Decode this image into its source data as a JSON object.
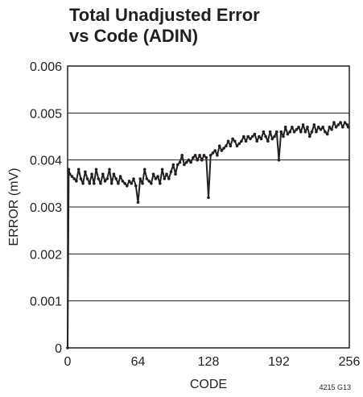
{
  "chart_data": {
    "type": "line",
    "title_lines": [
      "Total Unadjusted Error",
      "vs Code (ADIN)"
    ],
    "xlabel": "CODE",
    "ylabel": "ERROR (mV)",
    "xlim": [
      0,
      256
    ],
    "ylim": [
      0,
      0.006
    ],
    "x_ticks": [
      0,
      64,
      128,
      192,
      256
    ],
    "x_tick_labels": [
      "0",
      "64",
      "128",
      "192",
      "256"
    ],
    "y_ticks": [
      0,
      0.001,
      0.002,
      0.003,
      0.004,
      0.005,
      0.006
    ],
    "y_tick_labels": [
      "0",
      "0.001",
      "0.002",
      "0.003",
      "0.004",
      "0.005",
      "0.006"
    ],
    "grid": "horizontal",
    "figure_number": "4215 G13",
    "series": [
      {
        "color": "#231f20",
        "marker": "dot",
        "x": [
          0,
          1,
          2,
          4,
          6,
          8,
          10,
          12,
          14,
          16,
          18,
          20,
          22,
          24,
          26,
          28,
          30,
          32,
          34,
          36,
          38,
          40,
          42,
          44,
          46,
          48,
          50,
          52,
          54,
          56,
          58,
          60,
          62,
          64,
          66,
          68,
          70,
          72,
          74,
          76,
          78,
          80,
          82,
          84,
          86,
          88,
          90,
          92,
          94,
          96,
          98,
          100,
          102,
          104,
          106,
          108,
          110,
          112,
          114,
          116,
          118,
          120,
          122,
          124,
          126,
          128,
          130,
          132,
          134,
          136,
          138,
          140,
          142,
          144,
          146,
          148,
          150,
          152,
          154,
          156,
          158,
          160,
          162,
          164,
          166,
          168,
          170,
          172,
          174,
          176,
          178,
          180,
          182,
          184,
          186,
          188,
          190,
          192,
          194,
          196,
          198,
          200,
          202,
          204,
          206,
          208,
          210,
          212,
          214,
          216,
          218,
          220,
          222,
          224,
          226,
          228,
          230,
          232,
          234,
          236,
          238,
          240,
          242,
          244,
          246,
          248,
          250,
          252,
          254,
          255
        ],
        "y": [
          0.0,
          0.0038,
          0.0037,
          0.00365,
          0.0036,
          0.00355,
          0.0038,
          0.0036,
          0.0035,
          0.00375,
          0.0036,
          0.0035,
          0.0037,
          0.0035,
          0.0038,
          0.0036,
          0.0035,
          0.0037,
          0.00355,
          0.0036,
          0.0038,
          0.0035,
          0.0037,
          0.0036,
          0.0035,
          0.00365,
          0.00355,
          0.0035,
          0.00345,
          0.00355,
          0.0035,
          0.0036,
          0.00345,
          0.0031,
          0.0036,
          0.0035,
          0.0038,
          0.0036,
          0.00355,
          0.0035,
          0.0037,
          0.0036,
          0.00365,
          0.0035,
          0.0038,
          0.0036,
          0.0037,
          0.0036,
          0.00375,
          0.0039,
          0.0037,
          0.0039,
          0.00395,
          0.0041,
          0.0039,
          0.00395,
          0.004,
          0.00395,
          0.00405,
          0.0041,
          0.004,
          0.0041,
          0.004,
          0.0041,
          0.00405,
          0.0032,
          0.0041,
          0.00415,
          0.0042,
          0.0041,
          0.0043,
          0.0042,
          0.00425,
          0.0043,
          0.0044,
          0.0043,
          0.00445,
          0.0044,
          0.0043,
          0.00435,
          0.0044,
          0.0045,
          0.0044,
          0.0045,
          0.00445,
          0.0045,
          0.00455,
          0.0044,
          0.0045,
          0.00445,
          0.0046,
          0.0045,
          0.0044,
          0.0046,
          0.00445,
          0.0045,
          0.0046,
          0.004,
          0.0046,
          0.0045,
          0.0047,
          0.00455,
          0.0046,
          0.0047,
          0.0046,
          0.00465,
          0.0047,
          0.0046,
          0.00475,
          0.0046,
          0.0047,
          0.0045,
          0.0046,
          0.00475,
          0.0046,
          0.0047,
          0.00465,
          0.0047,
          0.0046,
          0.00455,
          0.0047,
          0.00465,
          0.0048,
          0.0047,
          0.00475,
          0.0048,
          0.0047,
          0.0048,
          0.00475,
          0.0047
        ]
      }
    ]
  }
}
